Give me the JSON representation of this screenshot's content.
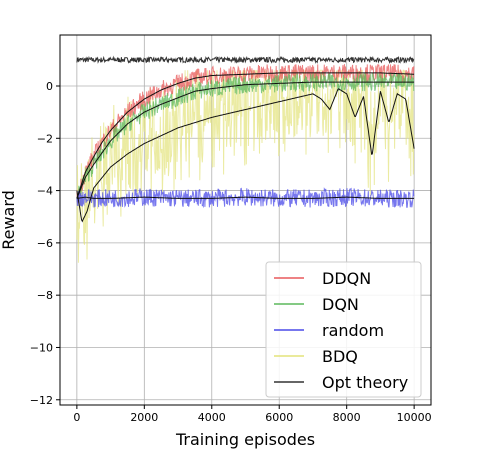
{
  "chart_data": {
    "type": "line",
    "title": "",
    "xlabel": "Training episodes",
    "ylabel": "Reward",
    "xlim": [
      -500,
      10500
    ],
    "ylim": [
      -12.2,
      1.95
    ],
    "xticks": [
      0,
      2000,
      4000,
      6000,
      8000,
      10000
    ],
    "xtick_labels": [
      "0",
      "2000",
      "4000",
      "6000",
      "8000",
      "10000"
    ],
    "yticks": [
      0,
      -2,
      -4,
      -6,
      -8,
      -10,
      -12
    ],
    "ytick_labels": [
      "0",
      "−2",
      "−4",
      "−6",
      "−8",
      "−10",
      "−12"
    ],
    "grid": true,
    "legend_position": "lower-right",
    "series": [
      {
        "name": "DDQN",
        "color": "#e8595b",
        "raw_band": 0.35,
        "x": [
          0,
          250,
          500,
          750,
          1000,
          1500,
          2000,
          2500,
          3000,
          3500,
          4000,
          5000,
          6000,
          7000,
          8000,
          9000,
          10000
        ],
        "y": [
          -4.3,
          -3.3,
          -2.7,
          -2.15,
          -1.7,
          -1.0,
          -0.5,
          -0.15,
          0.1,
          0.3,
          0.4,
          0.45,
          0.5,
          0.5,
          0.5,
          0.5,
          0.45
        ]
      },
      {
        "name": "DQN",
        "color": "#5cb85c",
        "raw_band": 0.35,
        "x": [
          0,
          250,
          500,
          750,
          1000,
          1500,
          2000,
          2500,
          3000,
          3500,
          4000,
          5000,
          6000,
          7000,
          8000,
          9000,
          10000
        ],
        "y": [
          -4.3,
          -3.5,
          -3.0,
          -2.55,
          -2.1,
          -1.45,
          -1.0,
          -0.7,
          -0.45,
          -0.2,
          -0.1,
          0.05,
          0.1,
          0.15,
          0.15,
          0.15,
          0.15
        ]
      },
      {
        "name": "random",
        "color": "#4a4ae8",
        "raw_band": 0.35,
        "x": [
          0,
          250,
          500,
          1000,
          2000,
          3000,
          4000,
          5000,
          6000,
          7000,
          8000,
          9000,
          10000
        ],
        "y": [
          -4.3,
          -4.25,
          -4.3,
          -4.3,
          -4.25,
          -4.3,
          -4.3,
          -4.25,
          -4.3,
          -4.3,
          -4.25,
          -4.3,
          -4.3
        ]
      },
      {
        "name": "BDQ",
        "color": "#e3e37a",
        "raw_band": 2.6,
        "x": [
          0,
          150,
          300,
          500,
          750,
          1000,
          1500,
          2000,
          2500,
          3000,
          3500,
          4000,
          4500,
          5000,
          5500,
          6000,
          6500,
          7000,
          7250,
          7500,
          7750,
          8000,
          8250,
          8500,
          8750,
          9000,
          9250,
          9500,
          9750,
          10000
        ],
        "y": [
          -4.0,
          -5.2,
          -4.8,
          -3.9,
          -3.5,
          -3.1,
          -2.6,
          -2.2,
          -1.9,
          -1.6,
          -1.4,
          -1.2,
          -1.05,
          -0.9,
          -0.75,
          -0.6,
          -0.45,
          -0.3,
          -0.5,
          -0.9,
          -0.1,
          -0.3,
          -1.2,
          -0.4,
          -2.7,
          -0.2,
          -1.4,
          -0.3,
          -0.5,
          -2.4
        ]
      },
      {
        "name": "Opt theory",
        "color": "#333333",
        "raw_band": 0.1,
        "x": [
          0,
          10000
        ],
        "y": [
          1.0,
          1.0
        ]
      }
    ]
  }
}
